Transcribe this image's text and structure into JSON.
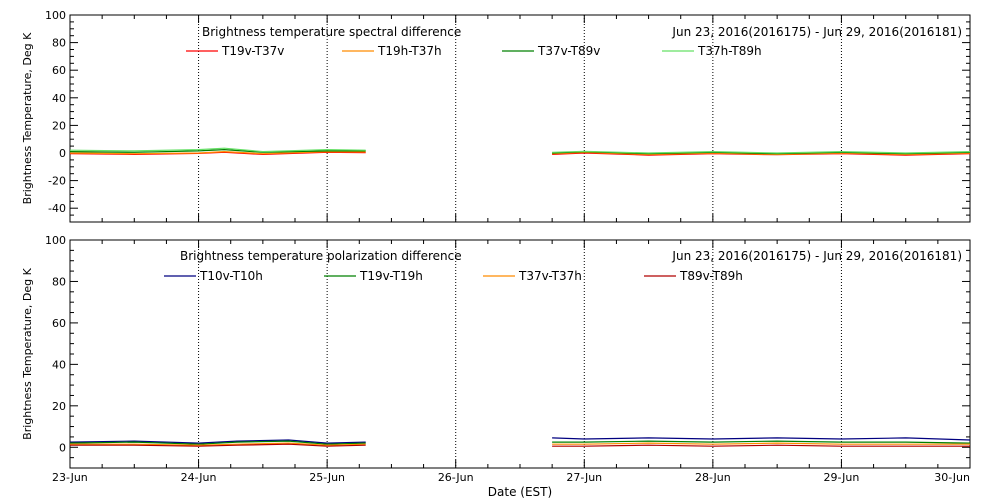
{
  "page": {
    "x_axis_label": "Date (EST)"
  },
  "chart_data": [
    {
      "type": "line",
      "title": "Brightness temperature spectral difference",
      "subtitle": "Jun 23, 2016(2016175) - Jun 29, 2016(2016181)",
      "ylabel": "Brightness Temperature, Deg K",
      "xlabel": "",
      "x_unit": "days since Jun 23, 2016 00:00 EST",
      "xlim": [
        0,
        7
      ],
      "ylim": [
        -50,
        100
      ],
      "y_ticks": [
        -40,
        -20,
        0,
        20,
        40,
        60,
        80,
        100
      ],
      "x_gridlines": [
        1,
        2,
        3,
        4,
        5,
        6
      ],
      "grid": true,
      "legend_position": "top",
      "series": [
        {
          "name": "T19v-T37v",
          "color": "#ff0000",
          "segments": [
            {
              "x": [
                0,
                0.5,
                1.0,
                1.2,
                1.5,
                2.0,
                2.3
              ],
              "y": [
                -0.5,
                -1,
                -0.3,
                0.5,
                -1,
                0.5,
                0.3
              ]
            },
            {
              "x": [
                3.75,
                4.0,
                4.5,
                5.0,
                5.5,
                6.0,
                6.5,
                7.0
              ],
              "y": [
                -1,
                0,
                -1.5,
                -0.5,
                -1.2,
                -0.5,
                -1.5,
                -0.5
              ]
            }
          ]
        },
        {
          "name": "T19h-T37h",
          "color": "#ff8c00",
          "segments": [
            {
              "x": [
                0,
                0.5,
                1.0,
                1.2,
                1.5,
                2.0,
                2.3
              ],
              "y": [
                0,
                -0.5,
                0,
                1,
                -0.5,
                1,
                0.8
              ]
            },
            {
              "x": [
                3.75,
                4.0,
                4.5,
                5.0,
                5.5,
                6.0,
                6.5,
                7.0
              ],
              "y": [
                -0.5,
                0.5,
                -1,
                0,
                -1,
                0,
                -1,
                0
              ]
            }
          ]
        },
        {
          "name": "T37v-T89v",
          "color": "#008000",
          "segments": [
            {
              "x": [
                0,
                0.5,
                1.0,
                1.2,
                1.5,
                2.0,
                2.3
              ],
              "y": [
                1,
                0.5,
                1.5,
                2.5,
                0.5,
                1.5,
                1.5
              ]
            },
            {
              "x": [
                3.75,
                4.0,
                4.5,
                5.0,
                5.5,
                6.0,
                6.5,
                7.0
              ],
              "y": [
                0,
                1,
                -0.5,
                0.5,
                -0.5,
                0.5,
                -0.5,
                0.5
              ]
            }
          ]
        },
        {
          "name": "T37h-T89h",
          "color": "#66e066",
          "segments": [
            {
              "x": [
                0,
                0.5,
                1.0,
                1.2,
                1.5,
                2.0,
                2.3
              ],
              "y": [
                2,
                1.5,
                2.5,
                3.5,
                1,
                2.5,
                2
              ]
            },
            {
              "x": [
                3.75,
                4.0,
                4.5,
                5.0,
                5.5,
                6.0,
                6.5,
                7.0
              ],
              "y": [
                0.5,
                1.2,
                0,
                1,
                0,
                1,
                0,
                1
              ]
            }
          ]
        }
      ]
    },
    {
      "type": "line",
      "title": "Brightness temperature polarization difference",
      "subtitle": "Jun 23, 2016(2016175) - Jun 29, 2016(2016181)",
      "ylabel": "Brightness Temperature, Deg K",
      "xlabel": "Date (EST)",
      "x_unit": "days since Jun 23, 2016 00:00 EST",
      "xlim": [
        0,
        7
      ],
      "ylim": [
        -10,
        100
      ],
      "y_ticks": [
        0,
        20,
        40,
        60,
        80,
        100
      ],
      "x_ticks": [
        0,
        1,
        2,
        3,
        4,
        5,
        6,
        7
      ],
      "x_tick_labels": [
        "23-Jun",
        "24-Jun",
        "25-Jun",
        "26-Jun",
        "27-Jun",
        "28-Jun",
        "29-Jun",
        "30-Jun"
      ],
      "x_gridlines": [
        1,
        2,
        3,
        4,
        5,
        6
      ],
      "grid": true,
      "legend_position": "top",
      "series": [
        {
          "name": "T10v-T10h",
          "color": "#000080",
          "segments": [
            {
              "x": [
                0,
                0.5,
                1.0,
                1.3,
                1.7,
                2.0,
                2.3
              ],
              "y": [
                2.5,
                3,
                2,
                3,
                3.5,
                2,
                2.5
              ]
            },
            {
              "x": [
                3.75,
                4.0,
                4.5,
                5.0,
                5.5,
                6.0,
                6.5,
                7.0
              ],
              "y": [
                4.5,
                4,
                4.5,
                4,
                4.5,
                4,
                4.5,
                3.5
              ]
            }
          ]
        },
        {
          "name": "T19v-T19h",
          "color": "#008000",
          "segments": [
            {
              "x": [
                0,
                0.5,
                1.0,
                1.3,
                1.7,
                2.0,
                2.3
              ],
              "y": [
                2,
                2.5,
                1.5,
                2.5,
                3,
                1.5,
                2
              ]
            },
            {
              "x": [
                3.75,
                4.0,
                4.5,
                5.0,
                5.5,
                6.0,
                6.5,
                7.0
              ],
              "y": [
                2.5,
                2.5,
                3,
                2.5,
                3,
                2.5,
                2.5,
                2
              ]
            }
          ]
        },
        {
          "name": "T37v-T37h",
          "color": "#ff8c00",
          "segments": [
            {
              "x": [
                0,
                0.5,
                1.0,
                1.3,
                1.7,
                2.0,
                2.3
              ],
              "y": [
                1.5,
                1.5,
                1,
                1.5,
                2,
                1,
                1.5
              ]
            },
            {
              "x": [
                3.75,
                4.0,
                4.5,
                5.0,
                5.5,
                6.0,
                6.5,
                7.0
              ],
              "y": [
                1.5,
                1.5,
                2,
                1.5,
                2,
                1.5,
                1.5,
                1.5
              ]
            }
          ]
        },
        {
          "name": "T89v-T89h",
          "color": "#b00000",
          "segments": [
            {
              "x": [
                0,
                0.5,
                1.0,
                1.3,
                1.7,
                2.0,
                2.3
              ],
              "y": [
                1,
                1,
                0.5,
                1,
                1.5,
                0.5,
                1
              ]
            },
            {
              "x": [
                3.75,
                4.0,
                4.5,
                5.0,
                5.5,
                6.0,
                6.5,
                7.0
              ],
              "y": [
                0.5,
                0.5,
                1,
                0.5,
                1,
                0.5,
                0.5,
                0.5
              ]
            }
          ]
        }
      ]
    }
  ]
}
